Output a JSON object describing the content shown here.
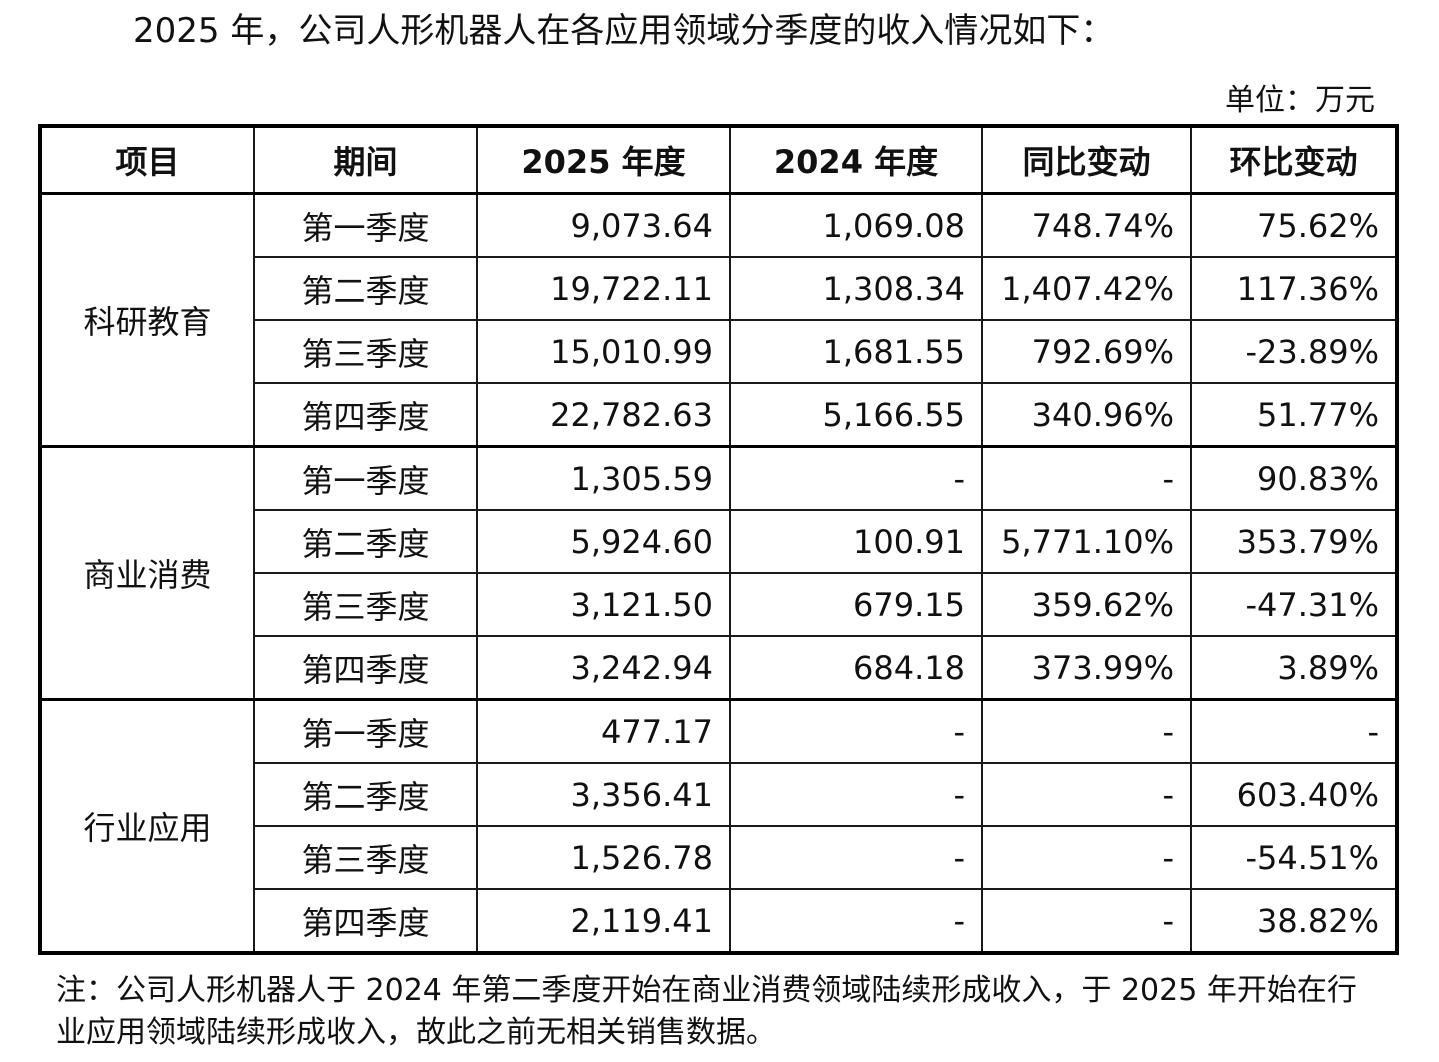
{
  "intro_text": "2025 年，公司人形机器人在各应用领域分季度的收入情况如下：",
  "unit_text": "单位：万元",
  "table": {
    "headers": [
      "项目",
      "期间",
      "2025 年度",
      "2024 年度",
      "同比变动",
      "环比变动"
    ],
    "groups": [
      {
        "name": "科研教育",
        "rows": [
          {
            "period": "第一季度",
            "y2025": "9,073.64",
            "y2024": "1,069.08",
            "yoy": "748.74%",
            "qoq": "75.62%"
          },
          {
            "period": "第二季度",
            "y2025": "19,722.11",
            "y2024": "1,308.34",
            "yoy": "1,407.42%",
            "qoq": "117.36%"
          },
          {
            "period": "第三季度",
            "y2025": "15,010.99",
            "y2024": "1,681.55",
            "yoy": "792.69%",
            "qoq": "-23.89%"
          },
          {
            "period": "第四季度",
            "y2025": "22,782.63",
            "y2024": "5,166.55",
            "yoy": "340.96%",
            "qoq": "51.77%"
          }
        ]
      },
      {
        "name": "商业消费",
        "rows": [
          {
            "period": "第一季度",
            "y2025": "1,305.59",
            "y2024": "-",
            "yoy": "-",
            "qoq": "90.83%"
          },
          {
            "period": "第二季度",
            "y2025": "5,924.60",
            "y2024": "100.91",
            "yoy": "5,771.10%",
            "qoq": "353.79%"
          },
          {
            "period": "第三季度",
            "y2025": "3,121.50",
            "y2024": "679.15",
            "yoy": "359.62%",
            "qoq": "-47.31%"
          },
          {
            "period": "第四季度",
            "y2025": "3,242.94",
            "y2024": "684.18",
            "yoy": "373.99%",
            "qoq": "3.89%"
          }
        ]
      },
      {
        "name": "行业应用",
        "rows": [
          {
            "period": "第一季度",
            "y2025": "477.17",
            "y2024": "-",
            "yoy": "-",
            "qoq": "-"
          },
          {
            "period": "第二季度",
            "y2025": "3,356.41",
            "y2024": "-",
            "yoy": "-",
            "qoq": "603.40%"
          },
          {
            "period": "第三季度",
            "y2025": "1,526.78",
            "y2024": "-",
            "yoy": "-",
            "qoq": "-54.51%"
          },
          {
            "period": "第四季度",
            "y2025": "2,119.41",
            "y2024": "-",
            "yoy": "-",
            "qoq": "38.82%"
          }
        ]
      }
    ]
  },
  "note_text": "注：公司人形机器人于 2024 年第二季度开始在商业消费领域陆续形成收入，于 2025 年开始在行业应用领域陆续形成收入，故此之前无相关销售数据。"
}
